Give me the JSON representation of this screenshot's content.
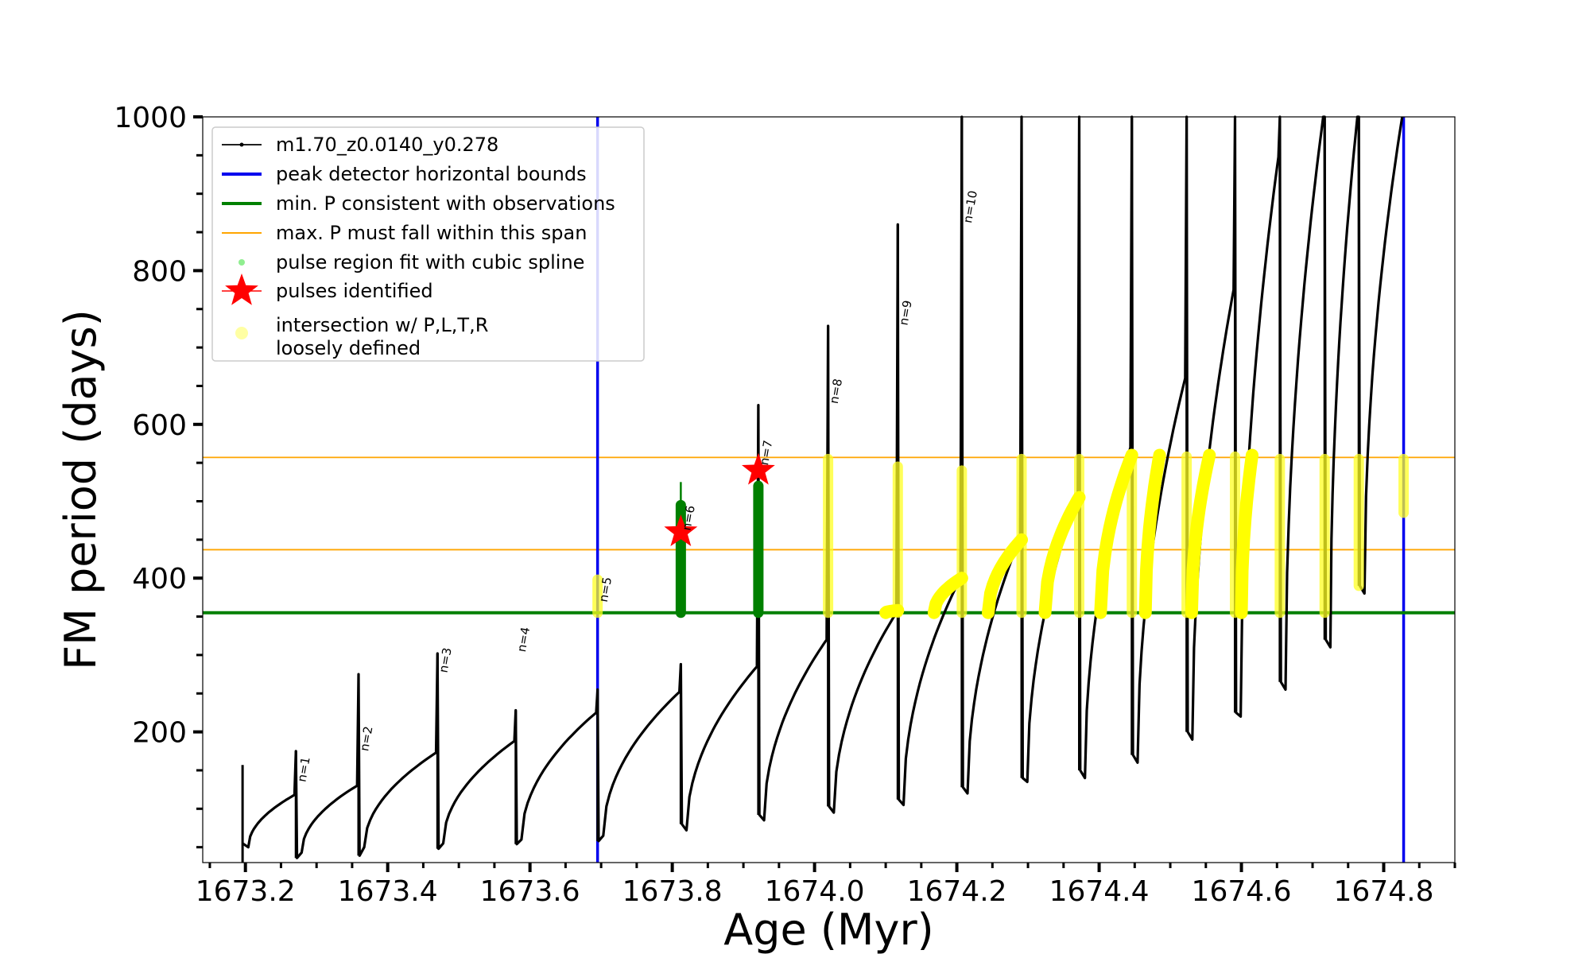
{
  "chart_data": {
    "type": "line",
    "title": "",
    "xlabel": "Age (Myr)",
    "ylabel": "FM period (days)",
    "xlim": [
      1673.14,
      1674.9
    ],
    "ylim": [
      30,
      1000
    ],
    "xticks": [
      {
        "value": 1673.2,
        "label": "1673.2"
      },
      {
        "value": 1673.4,
        "label": "1673.4"
      },
      {
        "value": 1673.6,
        "label": "1673.6"
      },
      {
        "value": 1673.8,
        "label": "1673.8"
      },
      {
        "value": 1674.0,
        "label": "1674.0"
      },
      {
        "value": 1674.2,
        "label": "1674.2"
      },
      {
        "value": 1674.4,
        "label": "1674.4"
      },
      {
        "value": 1674.6,
        "label": "1674.6"
      },
      {
        "value": 1674.8,
        "label": "1674.8"
      }
    ],
    "yticks": [
      {
        "value": 200,
        "label": "200"
      },
      {
        "value": 400,
        "label": "400"
      },
      {
        "value": 600,
        "label": "600"
      },
      {
        "value": 800,
        "label": "800"
      },
      {
        "value": 1000,
        "label": "1000"
      }
    ],
    "series": [
      {
        "name": "m1.70_z0.0140_y0.278",
        "color": "#000000",
        "style": "line-with-point-markers",
        "cycles": [
          [
            1673.196,
            30,
            50,
            118,
            157
          ],
          [
            1673.271,
            36,
            43,
            130,
            175
          ],
          [
            1673.359,
            39,
            50,
            173,
            275
          ],
          [
            1673.47,
            48,
            55,
            188,
            302
          ],
          [
            1673.58,
            54,
            60,
            225,
            228
          ],
          [
            1673.695,
            58,
            65,
            252,
            255
          ],
          [
            1673.812,
            80,
            72,
            285,
            288
          ],
          [
            1673.921,
            92,
            85,
            320,
            625
          ],
          [
            1674.019,
            103,
            95,
            355,
            728
          ],
          [
            1674.117,
            112,
            105,
            400,
            860
          ],
          [
            1674.207,
            128,
            120,
            452,
            1000
          ],
          [
            1674.291,
            140,
            135,
            508,
            1000
          ],
          [
            1674.372,
            150,
            140,
            570,
            1000
          ],
          [
            1674.446,
            170,
            160,
            660,
            1000
          ],
          [
            1674.523,
            200,
            190,
            775,
            1000
          ],
          [
            1674.591,
            225,
            220,
            948,
            1000
          ],
          [
            1674.654,
            265,
            255,
            1000,
            1000
          ],
          [
            1674.717,
            320,
            310,
            1000,
            1000
          ],
          [
            1674.765,
            390,
            380,
            1000,
            1000
          ]
        ]
      }
    ],
    "pulse_labels": [
      {
        "text": "n=1",
        "x": 1673.271,
        "y": 128
      },
      {
        "text": "n=2",
        "x": 1673.359,
        "y": 168
      },
      {
        "text": "n=3",
        "x": 1673.47,
        "y": 270
      },
      {
        "text": "n=4",
        "x": 1673.58,
        "y": 297
      },
      {
        "text": "n=5",
        "x": 1673.695,
        "y": 362
      },
      {
        "text": "n=6",
        "x": 1673.812,
        "y": 455
      },
      {
        "text": "n=7",
        "x": 1673.921,
        "y": 540
      },
      {
        "text": "n=8",
        "x": 1674.019,
        "y": 620
      },
      {
        "text": "n=9",
        "x": 1674.117,
        "y": 722
      },
      {
        "text": "n=10",
        "x": 1674.207,
        "y": 855
      }
    ],
    "reference_lines": {
      "peak_detector_bounds": [
        1673.695,
        1674.828
      ],
      "min_period": 355,
      "max_period_span": [
        437,
        557
      ]
    },
    "spline_fit_regions": [
      {
        "x": 1673.812,
        "y_range": [
          355,
          495
        ],
        "spike_to": 525
      },
      {
        "x": 1673.921,
        "y_range": [
          355,
          520
        ],
        "spike_to": 520
      }
    ],
    "pulses_identified": [
      {
        "x": 1673.812,
        "y": 460
      },
      {
        "x": 1673.921,
        "y": 540
      }
    ],
    "yellow_vertical_bands": [
      [
        1673.695,
        355,
        398
      ],
      [
        1674.019,
        355,
        555
      ],
      [
        1674.117,
        355,
        545
      ],
      [
        1674.207,
        355,
        540
      ],
      [
        1674.291,
        355,
        555
      ],
      [
        1674.372,
        355,
        555
      ],
      [
        1674.446,
        355,
        560
      ],
      [
        1674.523,
        355,
        558
      ],
      [
        1674.591,
        355,
        558
      ],
      [
        1674.654,
        355,
        555
      ],
      [
        1674.717,
        355,
        555
      ],
      [
        1674.765,
        390,
        555
      ],
      [
        1674.828,
        485,
        555
      ]
    ],
    "yellow_curve_segments": [
      [
        1674.1,
        1674.117,
        355,
        358
      ],
      [
        1674.168,
        1674.207,
        355,
        400
      ],
      [
        1674.244,
        1674.291,
        355,
        450
      ],
      [
        1674.324,
        1674.372,
        355,
        505
      ],
      [
        1674.402,
        1674.446,
        355,
        560
      ],
      [
        1674.465,
        1674.485,
        355,
        560
      ],
      [
        1674.53,
        1674.555,
        355,
        560
      ],
      [
        1674.6,
        1674.615,
        355,
        560
      ]
    ],
    "legend": {
      "location": "upper-left",
      "entries": [
        {
          "label": "m1.70_z0.0140_y0.278",
          "symbol": "line-dot",
          "color": "#000000"
        },
        {
          "label": "peak detector horizontal bounds",
          "symbol": "line",
          "color": "#0000ee"
        },
        {
          "label": "min. P consistent with observations",
          "symbol": "line",
          "color": "#008000"
        },
        {
          "label": "max. P must fall within this span",
          "symbol": "thin-line",
          "color": "#ffa500"
        },
        {
          "label": "pulse region fit with cubic spline",
          "symbol": "small-dot",
          "color": "#90ee90"
        },
        {
          "label": "pulses identified",
          "symbol": "star",
          "color": "#ff0000"
        },
        {
          "label": "intersection w/ P,L,T,R",
          "label2": "loosely defined",
          "symbol": "big-dot",
          "color": "#ffff66"
        }
      ]
    }
  }
}
